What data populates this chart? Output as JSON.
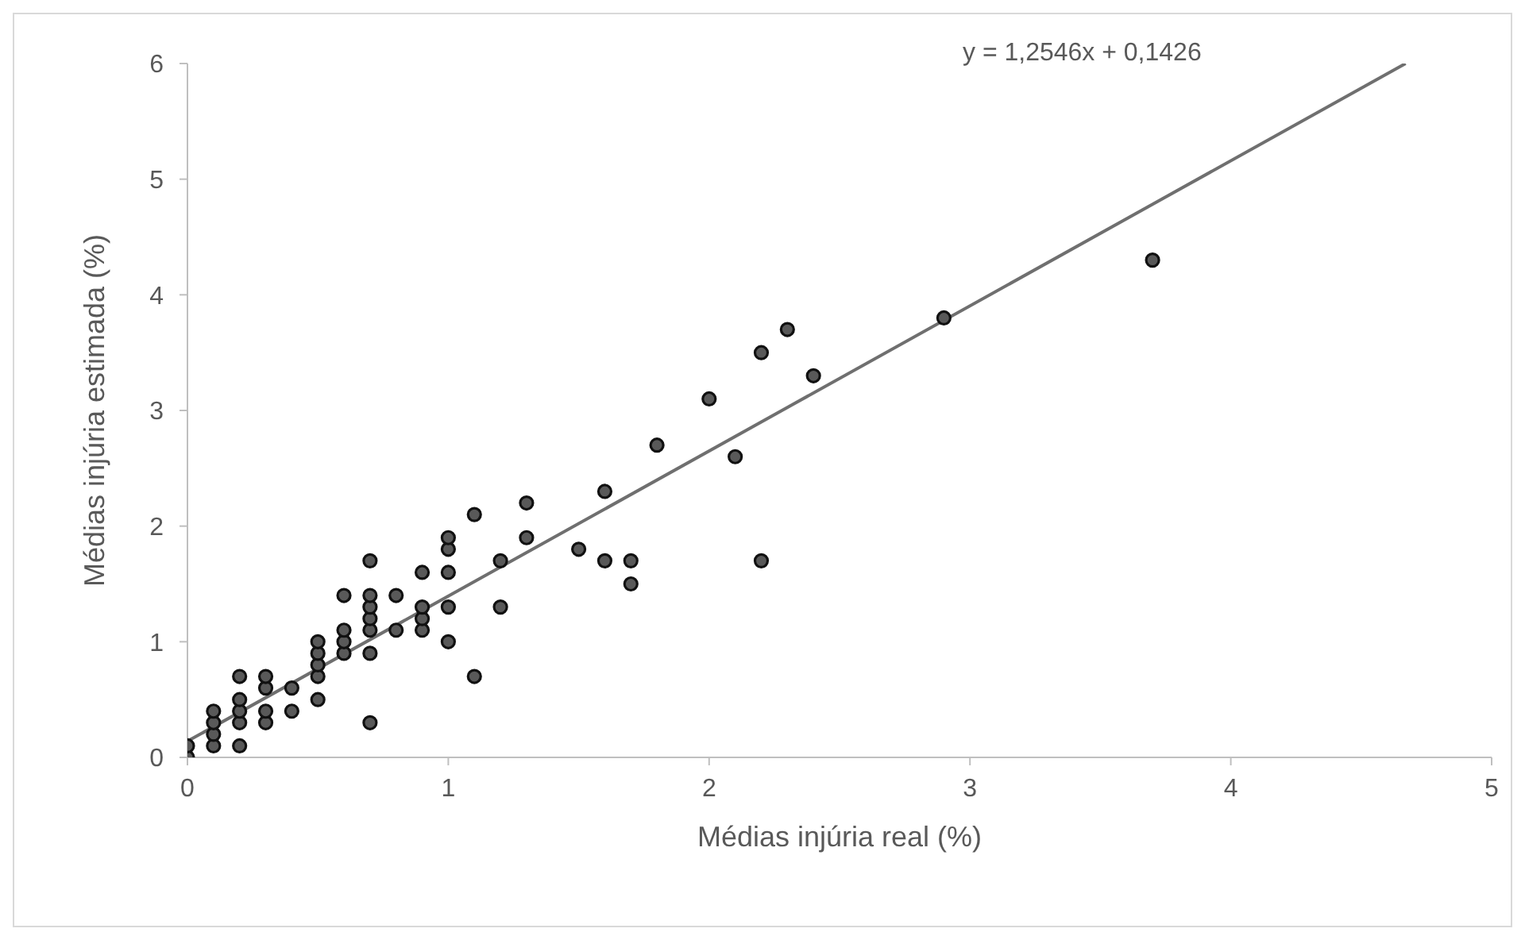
{
  "chart_data": {
    "type": "scatter",
    "xlabel": "Médias injúria real (%)",
    "ylabel": "Médias injúria estimada (%)",
    "annotations": [
      "y = 1,2546x + 0,1426"
    ],
    "xlim": [
      0,
      5
    ],
    "xticks": [
      0,
      1,
      2,
      3,
      4,
      5
    ],
    "ylim": [
      0,
      6
    ],
    "yticks": [
      0,
      1,
      2,
      3,
      4,
      5,
      6
    ],
    "grid": false,
    "series": [
      {
        "marker": "circle",
        "color": "#595959",
        "x": [
          0,
          0,
          0.1,
          0.1,
          0.1,
          0.1,
          0.2,
          0.2,
          0.2,
          0.2,
          0.2,
          0.3,
          0.3,
          0.3,
          0.3,
          0.4,
          0.4,
          0.5,
          0.5,
          0.5,
          0.5,
          0.5,
          0.6,
          0.6,
          0.6,
          0.6,
          0.7,
          0.7,
          0.7,
          0.7,
          0.7,
          0.7,
          0.7,
          0.8,
          0.8,
          0.9,
          0.9,
          0.9,
          0.9,
          1.0,
          1.0,
          1.0,
          1.0,
          1.0,
          1.1,
          1.1,
          1.2,
          1.2,
          1.3,
          1.3,
          1.5,
          1.6,
          1.6,
          1.7,
          1.7,
          1.8,
          2.0,
          2.1,
          2.2,
          2.2,
          2.3,
          2.4,
          2.9,
          3.7
        ],
        "values": [
          0,
          0.1,
          0.1,
          0.2,
          0.3,
          0.4,
          0.1,
          0.3,
          0.4,
          0.5,
          0.7,
          0.3,
          0.4,
          0.6,
          0.7,
          0.4,
          0.6,
          0.5,
          0.7,
          0.8,
          0.9,
          1.0,
          0.9,
          1.0,
          1.1,
          1.4,
          0.3,
          0.9,
          1.1,
          1.2,
          1.3,
          1.4,
          1.7,
          1.1,
          1.4,
          1.1,
          1.2,
          1.3,
          1.6,
          1.0,
          1.3,
          1.6,
          1.8,
          1.9,
          0.7,
          2.1,
          1.3,
          1.7,
          1.9,
          2.2,
          1.8,
          1.7,
          2.3,
          1.5,
          1.7,
          2.7,
          3.1,
          2.6,
          1.7,
          3.5,
          3.7,
          3.3,
          3.8,
          4.3
        ]
      },
      {
        "type": "line",
        "color": "#6f6f6f",
        "x": [
          0,
          4.67
        ],
        "values": [
          0.14,
          6.0
        ]
      }
    ]
  }
}
